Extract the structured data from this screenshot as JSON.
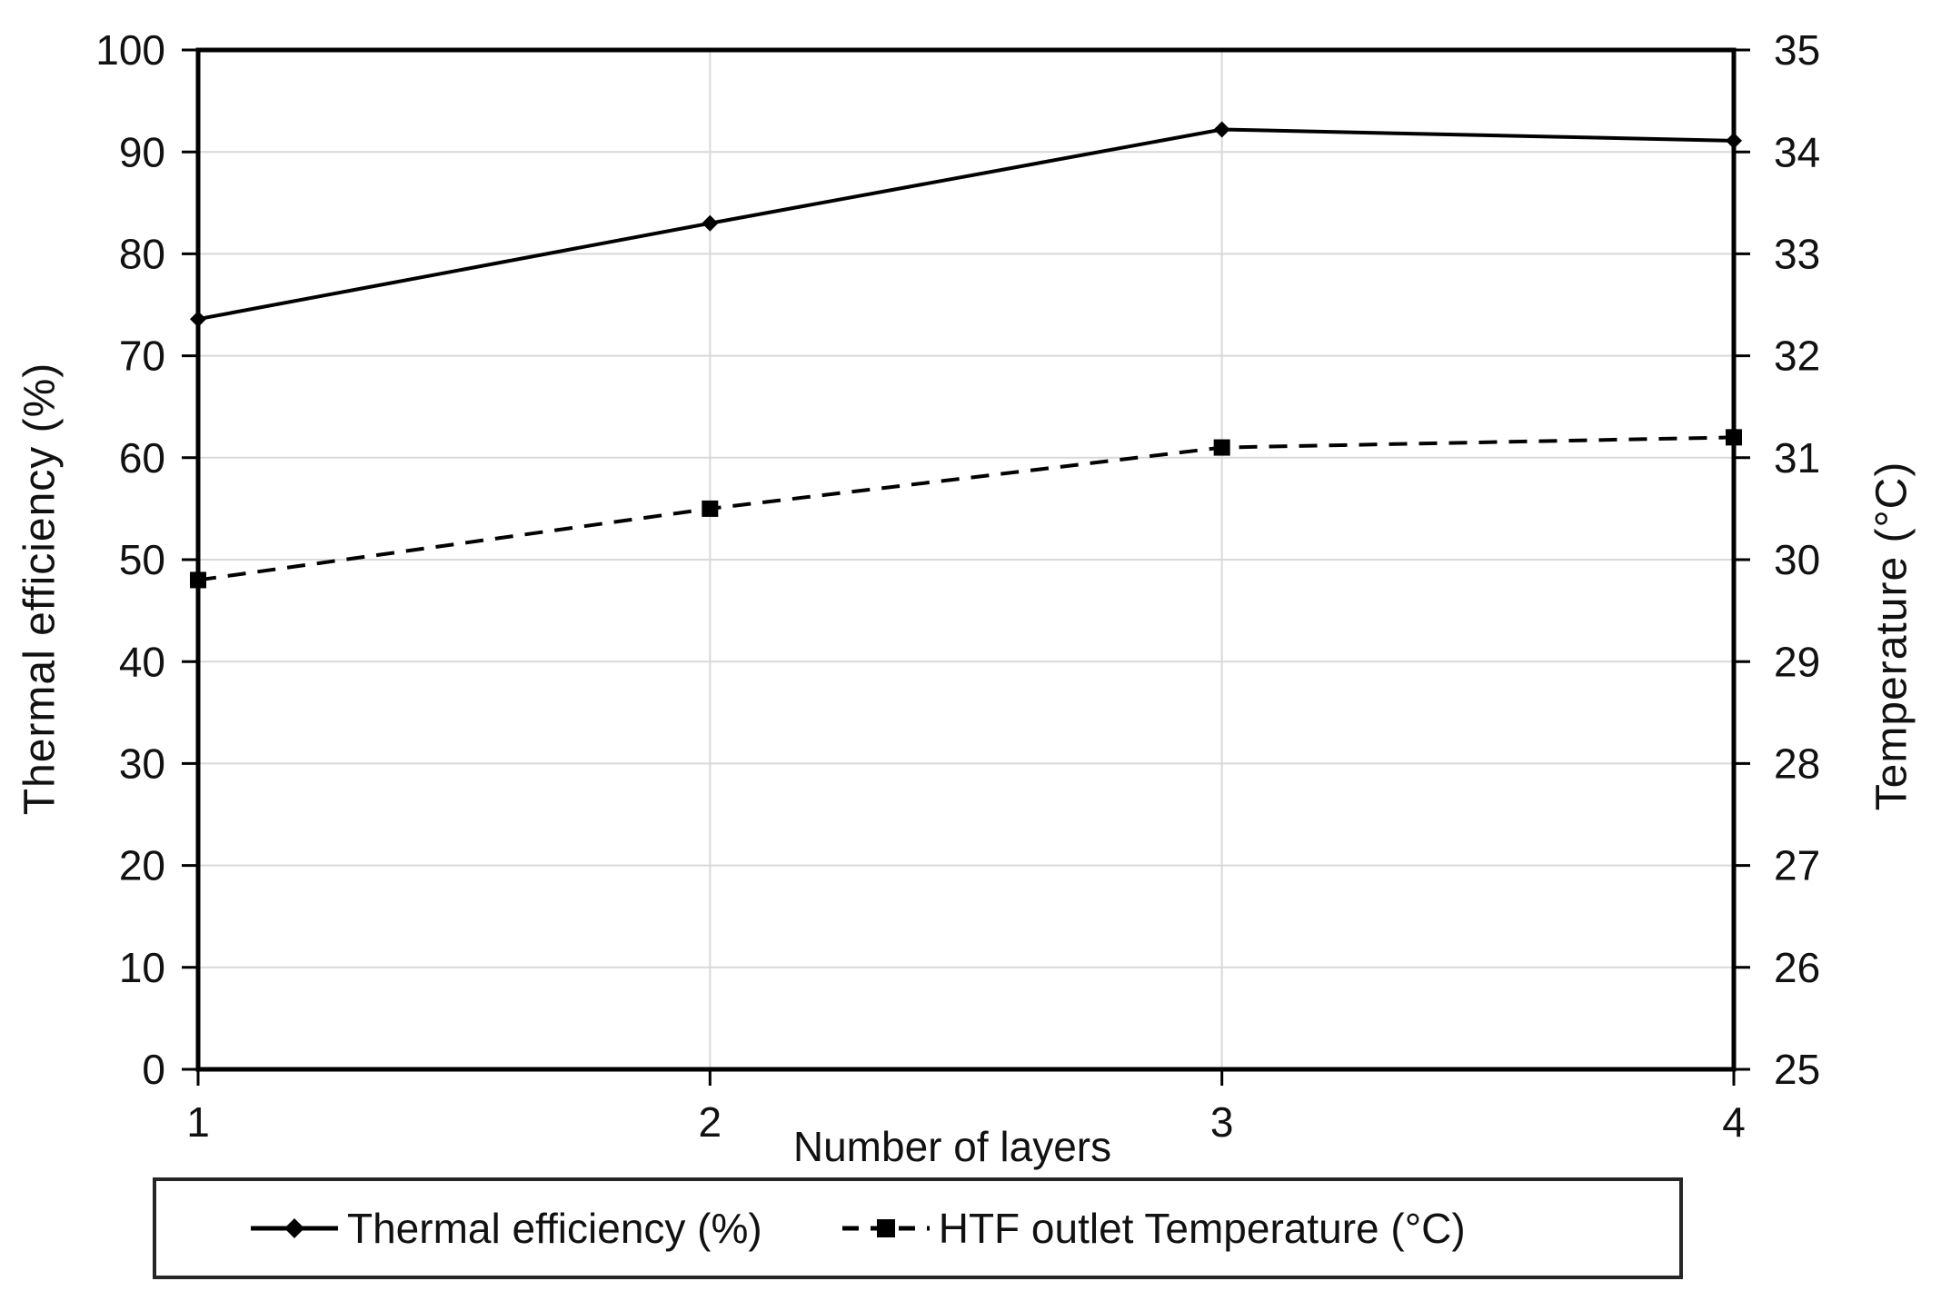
{
  "chart_data": {
    "type": "line",
    "title": "",
    "x": [
      1,
      2,
      3,
      4
    ],
    "x_tick_labels": [
      "1",
      "2",
      "3",
      "4"
    ],
    "xlabel": "Number of layers",
    "left_axis": {
      "label": "Thermal efficiency (%)",
      "range": [
        0,
        100
      ],
      "tick_step": 10,
      "tick_labels": [
        "0",
        "10",
        "20",
        "30",
        "40",
        "50",
        "60",
        "70",
        "80",
        "90",
        "100"
      ]
    },
    "right_axis": {
      "label": "Temperature (°C)",
      "range": [
        25,
        35
      ],
      "tick_step": 1,
      "tick_labels": [
        "25",
        "26",
        "27",
        "28",
        "29",
        "30",
        "31",
        "32",
        "33",
        "34",
        "35"
      ]
    },
    "series": [
      {
        "name": "Thermal efficiency (%)",
        "axis": "left",
        "style": "solid",
        "marker": "diamond",
        "color": "#000000",
        "values": [
          73.6,
          83.0,
          92.2,
          91.1
        ]
      },
      {
        "name": "HTF outlet Temperature (°C)",
        "axis": "right",
        "style": "dashed",
        "marker": "square",
        "color": "#000000",
        "values": [
          29.8,
          30.5,
          31.1,
          31.2
        ]
      }
    ],
    "grid": true,
    "legend_position": "bottom",
    "colors": {
      "grid": "#d9d9d9",
      "axis": "#000000",
      "text": "#111111"
    }
  }
}
